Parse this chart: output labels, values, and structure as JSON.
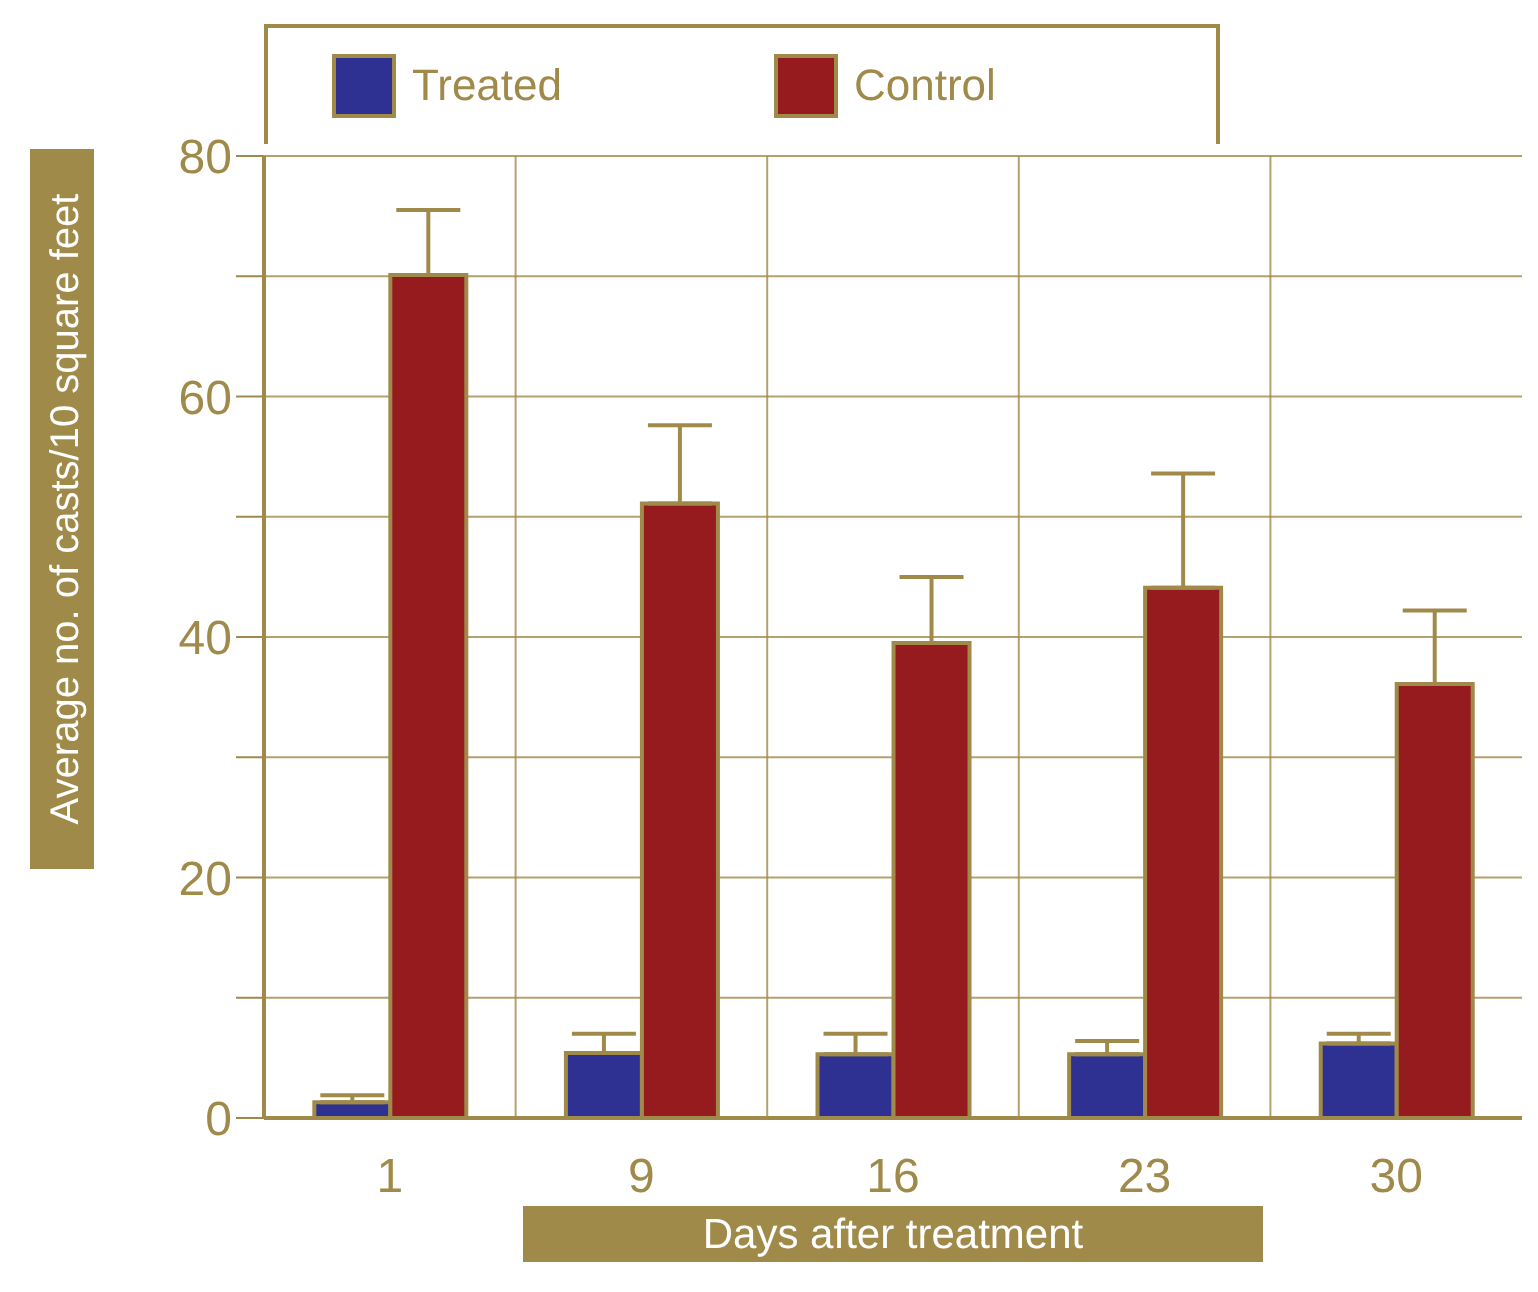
{
  "chart_data": {
    "type": "bar",
    "xlabel": "Days after treatment",
    "ylabel": "Average no. of casts/10 square feet",
    "categories": [
      "1",
      "9",
      "16",
      "23",
      "30"
    ],
    "series": [
      {
        "name": "Treated",
        "color": "#2e3192",
        "values": [
          1.3,
          5.4,
          5.3,
          5.3,
          6.2
        ],
        "errors": [
          [
            1.3,
            1.9
          ],
          [
            5.4,
            7.0
          ],
          [
            5.3,
            7.0
          ],
          [
            5.3,
            6.4
          ],
          [
            6.2,
            7.0
          ]
        ]
      },
      {
        "name": "Control",
        "color": "#961b1e",
        "values": [
          70.1,
          51.1,
          39.5,
          44.1,
          36.1
        ],
        "errors": [
          [
            70.1,
            75.5
          ],
          [
            51.1,
            57.6
          ],
          [
            39.5,
            45.0
          ],
          [
            44.1,
            53.6
          ],
          [
            36.1,
            42.2
          ]
        ]
      }
    ],
    "ylim": [
      0,
      80
    ],
    "yticks": [
      0,
      {
        "value": 10,
        "label": null
      },
      20,
      {
        "value": 30,
        "label": null
      },
      40,
      {
        "value": 50,
        "label": null
      },
      60,
      {
        "value": 70,
        "label": null
      },
      80
    ],
    "grid": true,
    "legend": "top left"
  }
}
